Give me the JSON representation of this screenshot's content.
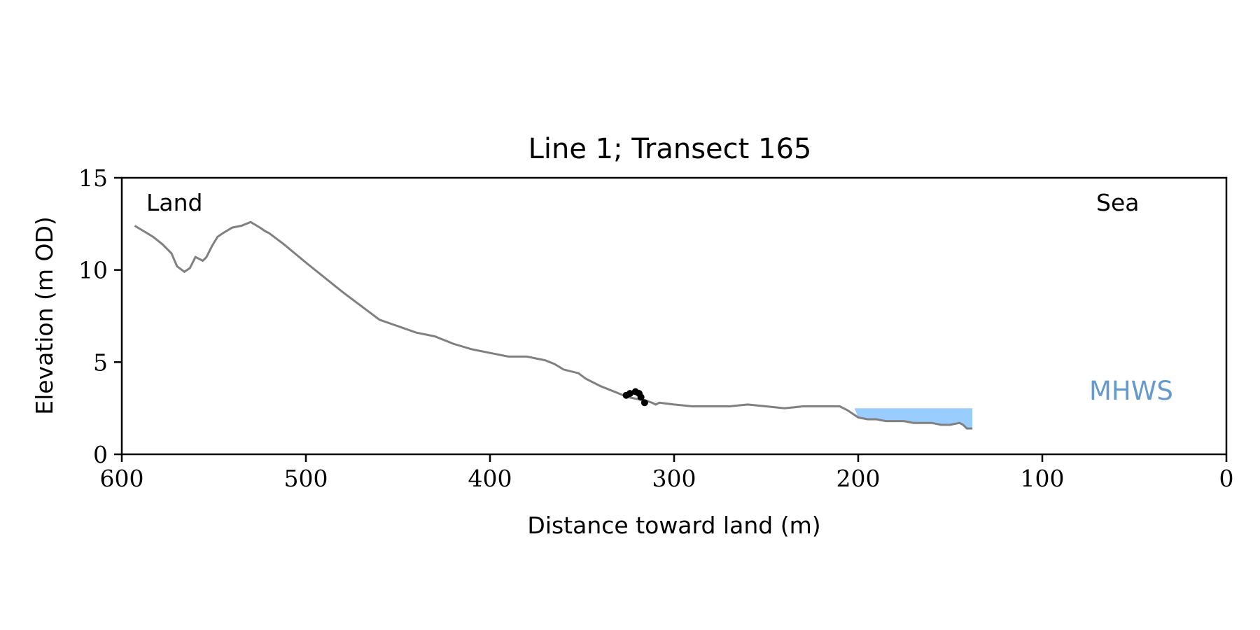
{
  "chart_data": {
    "type": "line",
    "title": "Line 1; Transect 165",
    "xlabel": "Distance toward land (m)",
    "ylabel": "Elevation (m OD)",
    "xlim": [
      600,
      0
    ],
    "ylim": [
      0,
      15
    ],
    "x_ticks": [
      600,
      500,
      400,
      300,
      200,
      100,
      0
    ],
    "y_ticks": [
      0,
      5,
      10,
      15
    ],
    "grid": false,
    "annotations": {
      "land": "Land",
      "sea": "Sea",
      "mhws": "MHWS"
    },
    "colors": {
      "profile": "#808080",
      "water": "#99ccff",
      "markers": "#000000",
      "mhws_text": "#6699cc"
    },
    "profile": {
      "x": [
        593,
        588,
        583,
        578,
        573,
        570,
        566,
        563,
        560,
        556,
        554,
        551,
        548,
        545,
        540,
        535,
        530,
        525,
        522,
        520,
        516,
        512,
        500,
        480,
        460,
        440,
        430,
        420,
        410,
        400,
        390,
        380,
        375,
        370,
        365,
        360,
        352,
        348,
        340,
        335,
        330,
        325,
        320,
        315,
        312,
        310,
        308,
        300,
        290,
        280,
        270,
        260,
        250,
        240,
        230,
        220,
        215,
        210,
        206,
        200,
        195,
        190,
        185,
        180,
        175,
        170,
        165,
        160,
        155,
        150,
        145,
        143,
        141,
        138
      ],
      "y": [
        12.4,
        12.1,
        11.8,
        11.4,
        10.9,
        10.2,
        9.9,
        10.1,
        10.7,
        10.5,
        10.7,
        11.3,
        11.8,
        12.0,
        12.3,
        12.4,
        12.6,
        12.3,
        12.1,
        12.0,
        11.7,
        11.4,
        10.4,
        8.8,
        7.3,
        6.6,
        6.4,
        6.0,
        5.7,
        5.5,
        5.3,
        5.3,
        5.2,
        5.1,
        4.9,
        4.6,
        4.4,
        4.1,
        3.7,
        3.5,
        3.3,
        3.1,
        3.0,
        2.9,
        2.8,
        2.7,
        2.8,
        2.7,
        2.6,
        2.6,
        2.6,
        2.7,
        2.6,
        2.5,
        2.6,
        2.6,
        2.6,
        2.6,
        2.4,
        2.0,
        1.9,
        1.9,
        1.8,
        1.8,
        1.8,
        1.7,
        1.7,
        1.7,
        1.6,
        1.6,
        1.7,
        1.6,
        1.4,
        1.4
      ]
    },
    "water_fill": {
      "level": 2.5,
      "x": [
        202,
        200,
        195,
        190,
        185,
        180,
        175,
        170,
        165,
        160,
        155,
        150,
        145,
        143,
        141,
        138
      ],
      "y": [
        2.5,
        2.0,
        1.9,
        1.9,
        1.8,
        1.8,
        1.8,
        1.7,
        1.7,
        1.7,
        1.6,
        1.6,
        1.7,
        1.6,
        1.4,
        1.4
      ]
    },
    "points": {
      "x": [
        326,
        324,
        321,
        319,
        318,
        316
      ],
      "y": [
        3.2,
        3.3,
        3.4,
        3.3,
        3.1,
        2.8
      ]
    }
  }
}
